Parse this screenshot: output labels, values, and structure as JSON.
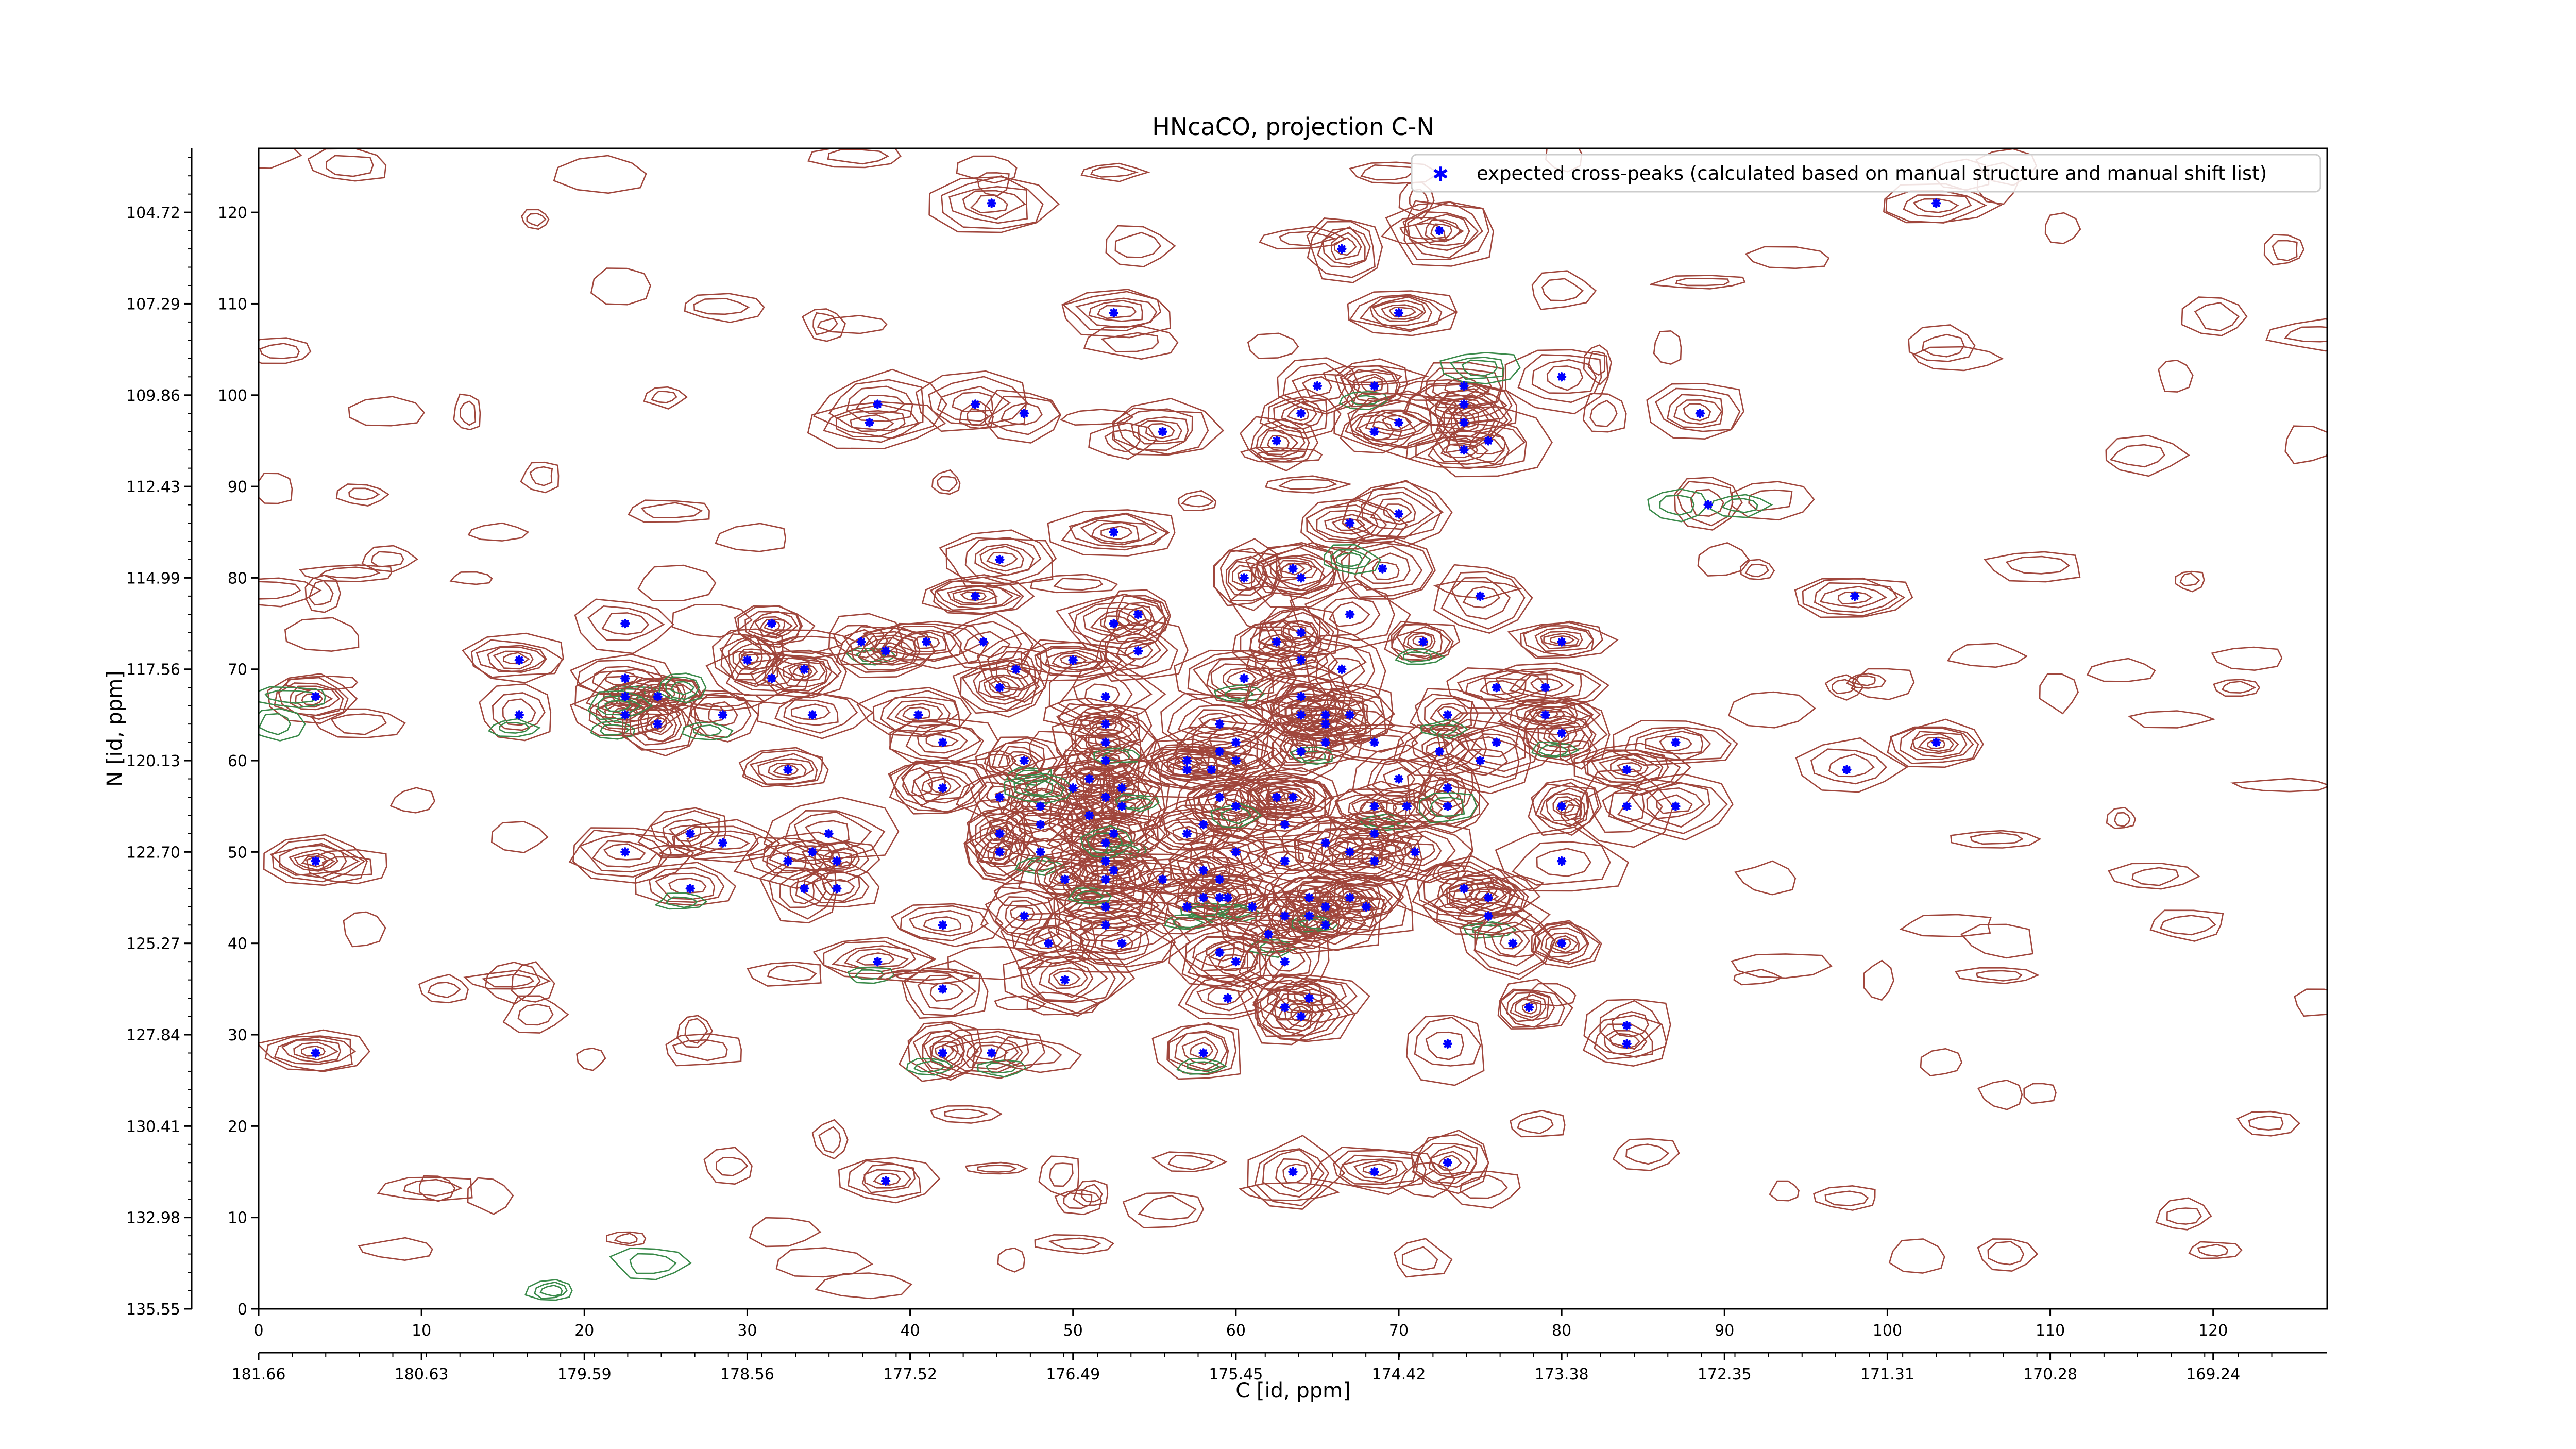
{
  "chart_data": {
    "type": "scatter",
    "title": "HNcaCO, projection C-N",
    "xlabel": "C [id, ppm]",
    "ylabel": "N [id, ppm]",
    "xlim": [
      0,
      127
    ],
    "ylim": [
      0,
      127
    ],
    "x_index_ticks": [
      "0",
      "10",
      "20",
      "30",
      "40",
      "50",
      "60",
      "70",
      "80",
      "90",
      "100",
      "110",
      "120"
    ],
    "x_ppm_ticks": [
      "181.66",
      "180.63",
      "179.59",
      "178.56",
      "177.52",
      "176.49",
      "175.45",
      "174.42",
      "173.38",
      "172.35",
      "171.31",
      "170.28",
      "169.24"
    ],
    "y_index_ticks": [
      "0",
      "10",
      "20",
      "30",
      "40",
      "50",
      "60",
      "70",
      "80",
      "90",
      "100",
      "110",
      "120"
    ],
    "y_ppm_ticks": [
      "135.55",
      "132.98",
      "130.41",
      "127.84",
      "125.27",
      "122.70",
      "120.13",
      "117.56",
      "114.99",
      "112.43",
      "109.86",
      "107.29",
      "104.72"
    ],
    "legend": {
      "placement": "top-right",
      "label": "expected cross-peaks (calculated based on manual structure and manual shift list)",
      "marker_color": "#0000ff"
    },
    "contour_colors": {
      "positive": "#a0463c",
      "negative": "#3a8a4a"
    },
    "marker_color": "#0000ff",
    "series": [
      {
        "name": "expected cross-peaks (calculated based on manual structure and manual shift list)",
        "points": [
          [
            3.5,
            67
          ],
          [
            3.5,
            49
          ],
          [
            3.5,
            28
          ],
          [
            16,
            71
          ],
          [
            16,
            65
          ],
          [
            22.5,
            75
          ],
          [
            22.5,
            50
          ],
          [
            22.5,
            69
          ],
          [
            22.5,
            67
          ],
          [
            22.5,
            65
          ],
          [
            24.5,
            64
          ],
          [
            24.5,
            67
          ],
          [
            26.5,
            46
          ],
          [
            26.5,
            52
          ],
          [
            28.5,
            51
          ],
          [
            28.5,
            65
          ],
          [
            30,
            71
          ],
          [
            31.5,
            75
          ],
          [
            31.5,
            69
          ],
          [
            32.5,
            59
          ],
          [
            32.5,
            49
          ],
          [
            33.5,
            70
          ],
          [
            33.5,
            46
          ],
          [
            34,
            50
          ],
          [
            34,
            65
          ],
          [
            35,
            52
          ],
          [
            35.5,
            49
          ],
          [
            35.5,
            46
          ],
          [
            37,
            73
          ],
          [
            37.5,
            97
          ],
          [
            38.5,
            72
          ],
          [
            38,
            99
          ],
          [
            38,
            38
          ],
          [
            38.5,
            14
          ],
          [
            40.5,
            65
          ],
          [
            41,
            73
          ],
          [
            42,
            62
          ],
          [
            42,
            57
          ],
          [
            42,
            42
          ],
          [
            42,
            35
          ],
          [
            42,
            28
          ],
          [
            44,
            78
          ],
          [
            44,
            99
          ],
          [
            44.5,
            73
          ],
          [
            45,
            28
          ],
          [
            45.5,
            68
          ],
          [
            45.5,
            56
          ],
          [
            45.5,
            52
          ],
          [
            45.5,
            50
          ],
          [
            45.5,
            82
          ],
          [
            45,
            121
          ],
          [
            47,
            98
          ],
          [
            47,
            60
          ],
          [
            46.5,
            70
          ],
          [
            47,
            43
          ],
          [
            48,
            53
          ],
          [
            48,
            50
          ],
          [
            48,
            55
          ],
          [
            48.5,
            40
          ],
          [
            49.5,
            47
          ],
          [
            49.5,
            36
          ],
          [
            50,
            57
          ],
          [
            50,
            71
          ],
          [
            51,
            54
          ],
          [
            51,
            58
          ],
          [
            52,
            49
          ],
          [
            52,
            51
          ],
          [
            52,
            56
          ],
          [
            52,
            60
          ],
          [
            52,
            62
          ],
          [
            52,
            64
          ],
          [
            52,
            67
          ],
          [
            52,
            42
          ],
          [
            52,
            44
          ],
          [
            52,
            47
          ],
          [
            52.5,
            85
          ],
          [
            52.5,
            75
          ],
          [
            52.5,
            109
          ],
          [
            52.5,
            52
          ],
          [
            52.5,
            48
          ],
          [
            53,
            55
          ],
          [
            53,
            57
          ],
          [
            53,
            40
          ],
          [
            54,
            72
          ],
          [
            54,
            76
          ],
          [
            55.5,
            96
          ],
          [
            55.5,
            47
          ],
          [
            57,
            44
          ],
          [
            57,
            52
          ],
          [
            57,
            59
          ],
          [
            57,
            60
          ],
          [
            58,
            45
          ],
          [
            58,
            48
          ],
          [
            58,
            53
          ],
          [
            58.5,
            59
          ],
          [
            59,
            45
          ],
          [
            59,
            47
          ],
          [
            59,
            56
          ],
          [
            59,
            61
          ],
          [
            59,
            64
          ],
          [
            59,
            39
          ],
          [
            59.5,
            34
          ],
          [
            59.5,
            45
          ],
          [
            60,
            50
          ],
          [
            60,
            55
          ],
          [
            60,
            60
          ],
          [
            60,
            62
          ],
          [
            60.5,
            69
          ],
          [
            58,
            28
          ],
          [
            60.5,
            80
          ],
          [
            61,
            44
          ],
          [
            62,
            41
          ],
          [
            62.5,
            56
          ],
          [
            62.5,
            73
          ],
          [
            62.5,
            95
          ],
          [
            63,
            49
          ],
          [
            63,
            53
          ],
          [
            63,
            43
          ],
          [
            63,
            38
          ],
          [
            63,
            33
          ],
          [
            63.5,
            81
          ],
          [
            63.5,
            56
          ],
          [
            63.5,
            15
          ],
          [
            64,
            61
          ],
          [
            64,
            65
          ],
          [
            64,
            67
          ],
          [
            64,
            71
          ],
          [
            64,
            74
          ],
          [
            64,
            80
          ],
          [
            64,
            98
          ],
          [
            64,
            32
          ],
          [
            64.5,
            34
          ],
          [
            64.5,
            43
          ],
          [
            64.5,
            45
          ],
          [
            65,
            101
          ],
          [
            65.5,
            62
          ],
          [
            65.5,
            64
          ],
          [
            65.5,
            65
          ],
          [
            65.5,
            51
          ],
          [
            65.5,
            44
          ],
          [
            65.5,
            42
          ],
          [
            66.5,
            70
          ],
          [
            66.5,
            116
          ],
          [
            67,
            86
          ],
          [
            67,
            65
          ],
          [
            67,
            50
          ],
          [
            67,
            45
          ],
          [
            67,
            76
          ],
          [
            68.5,
            15
          ],
          [
            68.5,
            101
          ],
          [
            68.5,
            96
          ],
          [
            68.5,
            62
          ],
          [
            68.5,
            55
          ],
          [
            68.5,
            52
          ],
          [
            68.5,
            49
          ],
          [
            68,
            44
          ],
          [
            69,
            81
          ],
          [
            70,
            109
          ],
          [
            70,
            97
          ],
          [
            70,
            87
          ],
          [
            70,
            58
          ],
          [
            70.5,
            55
          ],
          [
            71,
            50
          ],
          [
            71.5,
            73
          ],
          [
            72.5,
            118
          ],
          [
            72.5,
            61
          ],
          [
            73,
            55
          ],
          [
            73,
            57
          ],
          [
            73,
            65
          ],
          [
            73,
            29
          ],
          [
            73,
            16
          ],
          [
            74,
            46
          ],
          [
            74,
            101
          ],
          [
            74,
            99
          ],
          [
            74,
            97
          ],
          [
            74,
            94
          ],
          [
            75,
            78
          ],
          [
            75,
            60
          ],
          [
            76,
            68
          ],
          [
            76,
            62
          ],
          [
            75.5,
            45
          ],
          [
            75.5,
            43
          ],
          [
            75.5,
            95
          ],
          [
            77,
            40
          ],
          [
            78,
            33
          ],
          [
            79,
            65
          ],
          [
            79,
            68
          ],
          [
            80,
            63
          ],
          [
            80,
            55
          ],
          [
            80,
            49
          ],
          [
            80,
            40
          ],
          [
            80,
            73
          ],
          [
            80,
            102
          ],
          [
            84,
            59
          ],
          [
            84,
            31
          ],
          [
            84,
            29
          ],
          [
            84,
            55
          ],
          [
            87,
            62
          ],
          [
            87,
            55
          ],
          [
            88.5,
            98
          ],
          [
            89,
            88
          ],
          [
            98,
            78
          ],
          [
            97.5,
            59
          ],
          [
            103,
            62
          ],
          [
            103,
            121
          ],
          [
            60,
            38
          ]
        ]
      }
    ]
  }
}
